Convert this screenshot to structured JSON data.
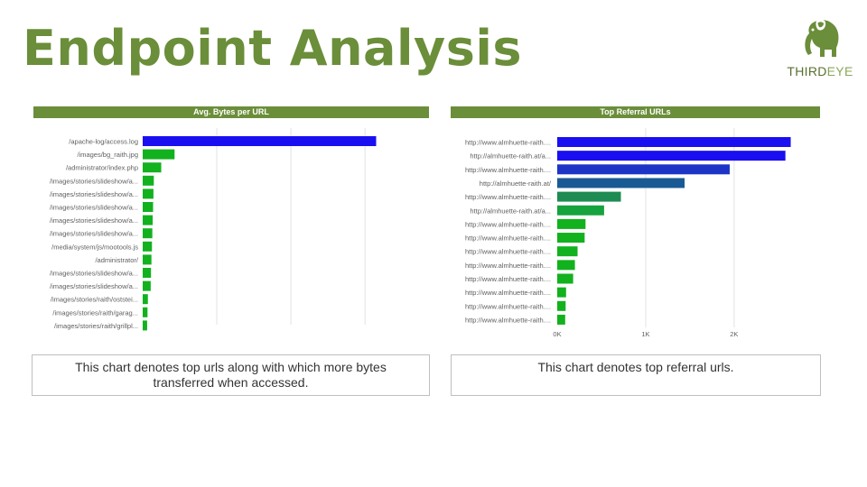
{
  "page": {
    "title": "Endpoint Analysis"
  },
  "logo": {
    "text_a": "THIRD",
    "text_b": "EYE",
    "icon": "elephant-icon"
  },
  "chart_data": [
    {
      "type": "bar",
      "orientation": "horizontal",
      "title": "Avg. Bytes per URL",
      "categories": [
        "/apache-log/access.log",
        "/images/bg_raith.jpg",
        "/administrator/index.php",
        "/images/stories/slideshow/a...",
        "/images/stories/slideshow/a...",
        "/images/stories/slideshow/a...",
        "/images/stories/slideshow/a...",
        "/images/stories/slideshow/a...",
        "/media/system/js/mootools.js",
        "/administrator/",
        "/images/stories/slideshow/a...",
        "/images/stories/slideshow/a...",
        "/images/stories/raith/oststei...",
        "/images/stories/raith/garag...",
        "/images/stories/raith/grillpl..."
      ],
      "values": [
        3150000,
        430000,
        250000,
        150000,
        145000,
        140000,
        135000,
        130000,
        125000,
        118000,
        112000,
        108000,
        70000,
        65000,
        60000
      ],
      "colors": [
        "#1a0ff0",
        "#12b11e",
        "#12b11e",
        "#12b11e",
        "#12b11e",
        "#12b11e",
        "#12b11e",
        "#12b11e",
        "#12b11e",
        "#12b11e",
        "#12b11e",
        "#12b11e",
        "#12b11e",
        "#12b11e",
        "#12b11e"
      ],
      "xlim": [
        0,
        3400000
      ],
      "xticks": [],
      "gridlines": [
        1000000,
        2000000,
        3000000
      ],
      "grid": true
    },
    {
      "type": "bar",
      "orientation": "horizontal",
      "title": "Top Referral URLs",
      "categories": [
        "http://www.almhuette-raith....",
        "http://almhuette-raith.at/a...",
        "http://www.almhuette-raith....",
        "http://almhuette-raith.at/",
        "http://www.almhuette-raith....",
        "http://almhuette-raith.at/a...",
        "http://www.almhuette-raith....",
        "http://www.almhuette-raith....",
        "http://www.almhuette-raith....",
        "http://www.almhuette-raith....",
        "http://www.almhuette-raith....",
        "http://www.almhuette-raith....",
        "http://www.almhuette-raith....",
        "http://www.almhuette-raith...."
      ],
      "values": [
        2640,
        2580,
        1950,
        1440,
        720,
        530,
        320,
        310,
        230,
        200,
        180,
        100,
        95,
        90
      ],
      "colors": [
        "#1a0ff0",
        "#1a0ff0",
        "#1d34c6",
        "#1a5a94",
        "#1e8c52",
        "#16a33e",
        "#12b11e",
        "#12b11e",
        "#12b11e",
        "#12b11e",
        "#12b11e",
        "#12b11e",
        "#12b11e",
        "#12b11e"
      ],
      "xlim": [
        0,
        2900
      ],
      "xticks": [
        {
          "value": 0,
          "label": "0K"
        },
        {
          "value": 1000,
          "label": "1K"
        },
        {
          "value": 2000,
          "label": "2K"
        }
      ],
      "gridlines": [
        1000,
        2000
      ],
      "grid": true
    }
  ],
  "captions": {
    "left": "This chart denotes top urls along with which more bytes transferred when accessed.",
    "right": "This chart denotes top referral urls."
  }
}
